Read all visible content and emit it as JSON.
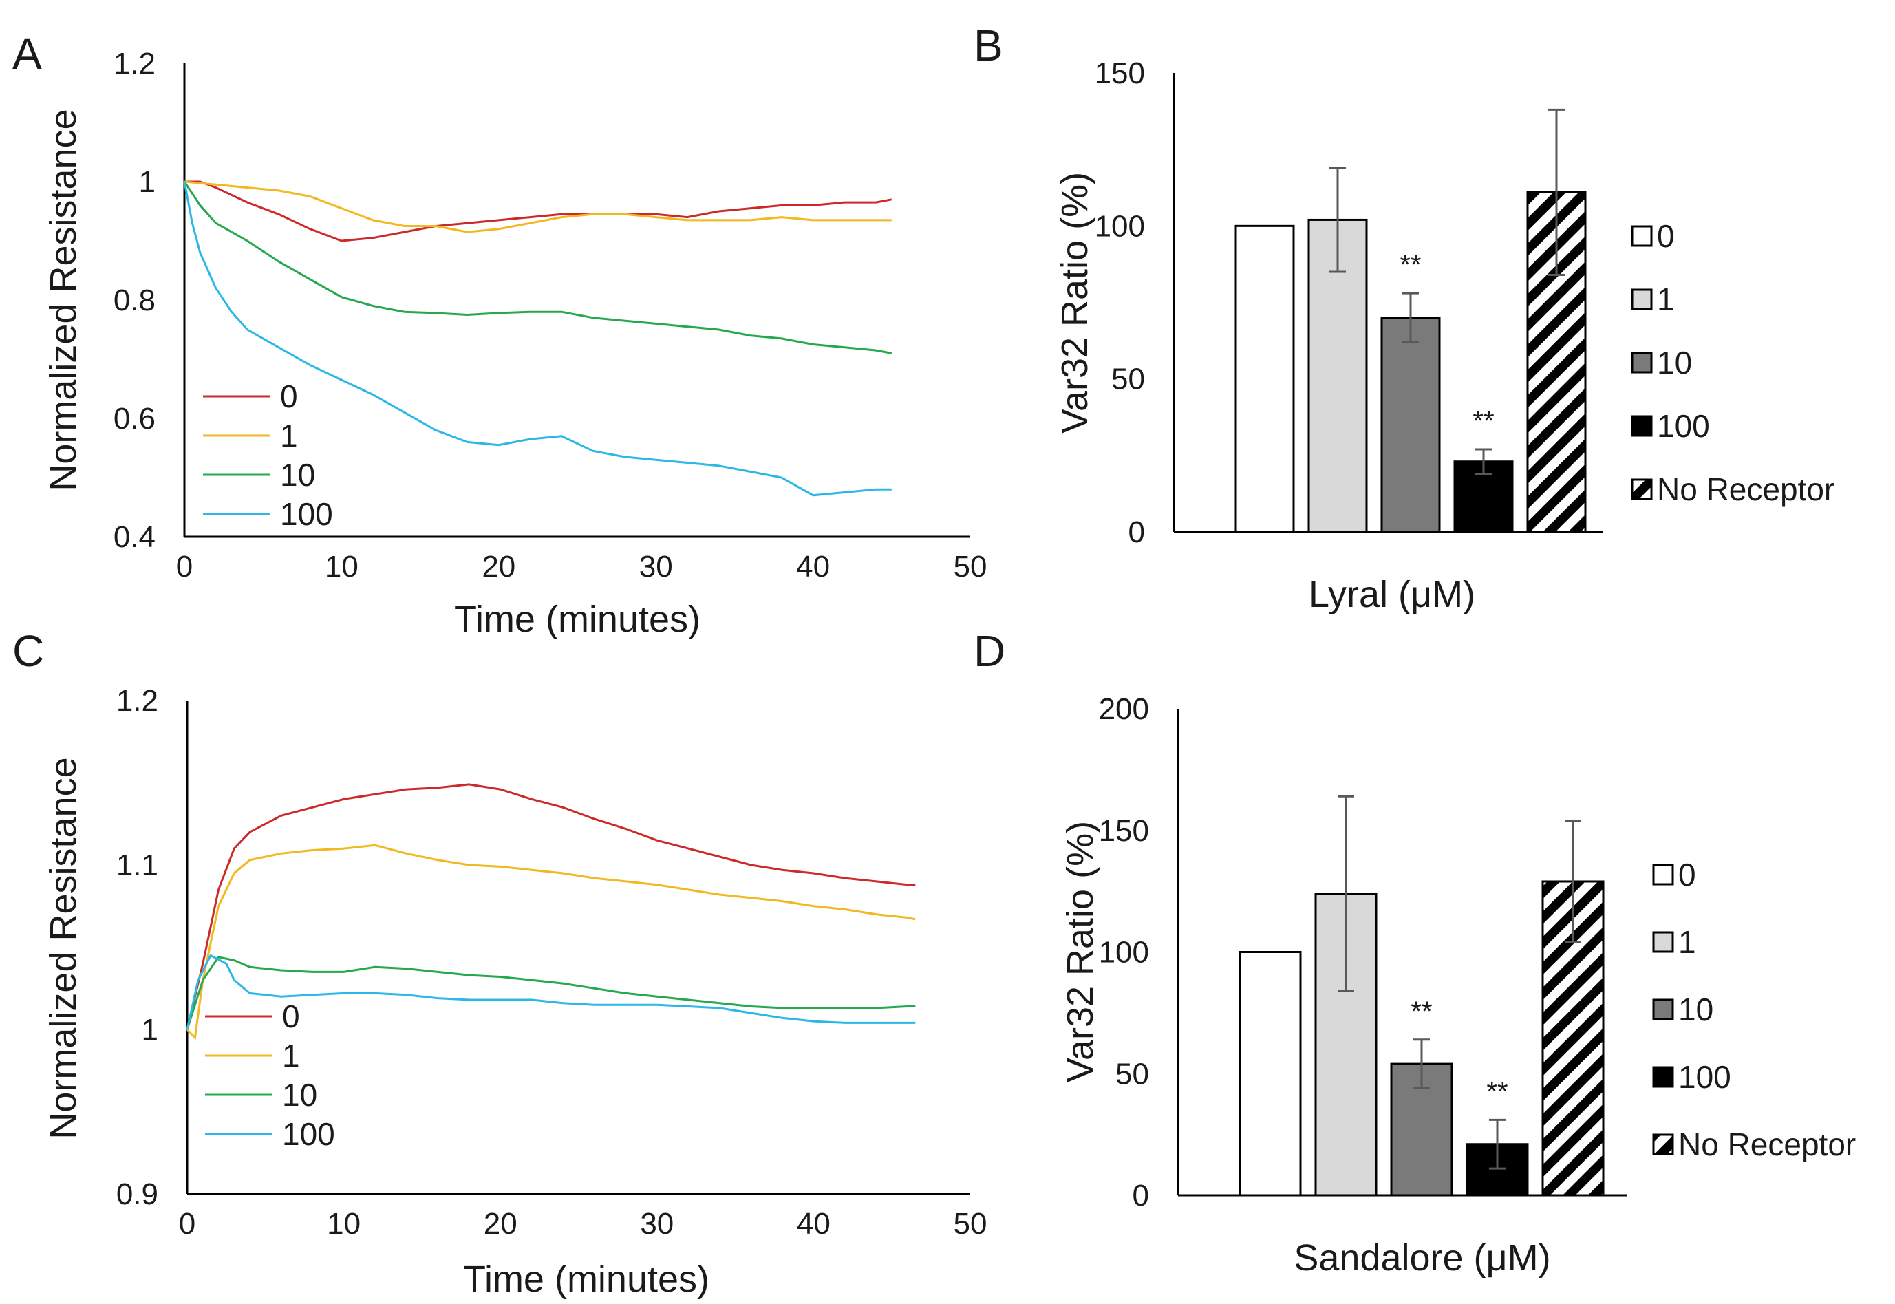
{
  "colors": {
    "c0": "#cc2a2a",
    "c1": "#f2b81f",
    "c10": "#26a84e",
    "c100": "#2bb8e6",
    "bar0": "#ffffff",
    "bar1": "#d9d9d9",
    "bar10": "#7a7a7a",
    "bar100": "#000000",
    "error": "#595959"
  },
  "chart_data": [
    {
      "panel": "A",
      "type": "line",
      "xlabel": "Time (minutes)",
      "ylabel": "Normalized Resistance",
      "xlim": [
        0,
        50
      ],
      "ylim": [
        0.4,
        1.2
      ],
      "xticks": [
        "0",
        "10",
        "20",
        "30",
        "40",
        "50"
      ],
      "yticks": [
        "0.4",
        "0.6",
        "0.8",
        "1",
        "1.2"
      ],
      "legend_position": "bottom-left",
      "series": [
        {
          "name": "0",
          "color": "#cc2a2a",
          "points": [
            [
              0,
              1.0
            ],
            [
              1,
              1.0
            ],
            [
              2,
              0.99
            ],
            [
              4,
              0.965
            ],
            [
              6,
              0.945
            ],
            [
              8,
              0.92
            ],
            [
              10,
              0.9
            ],
            [
              12,
              0.905
            ],
            [
              14,
              0.915
            ],
            [
              16,
              0.925
            ],
            [
              18,
              0.93
            ],
            [
              20,
              0.935
            ],
            [
              22,
              0.94
            ],
            [
              24,
              0.945
            ],
            [
              26,
              0.945
            ],
            [
              28,
              0.945
            ],
            [
              30,
              0.945
            ],
            [
              32,
              0.94
            ],
            [
              34,
              0.95
            ],
            [
              36,
              0.955
            ],
            [
              38,
              0.96
            ],
            [
              40,
              0.96
            ],
            [
              42,
              0.965
            ],
            [
              44,
              0.965
            ],
            [
              45,
              0.97
            ]
          ]
        },
        {
          "name": "1",
          "color": "#f2b81f",
          "points": [
            [
              0,
              1.0
            ],
            [
              2,
              0.995
            ],
            [
              4,
              0.99
            ],
            [
              6,
              0.985
            ],
            [
              8,
              0.975
            ],
            [
              10,
              0.955
            ],
            [
              12,
              0.935
            ],
            [
              14,
              0.925
            ],
            [
              16,
              0.925
            ],
            [
              18,
              0.915
            ],
            [
              20,
              0.92
            ],
            [
              22,
              0.93
            ],
            [
              24,
              0.94
            ],
            [
              26,
              0.945
            ],
            [
              28,
              0.945
            ],
            [
              30,
              0.94
            ],
            [
              32,
              0.935
            ],
            [
              34,
              0.935
            ],
            [
              36,
              0.935
            ],
            [
              38,
              0.94
            ],
            [
              40,
              0.935
            ],
            [
              42,
              0.935
            ],
            [
              44,
              0.935
            ],
            [
              45,
              0.935
            ]
          ]
        },
        {
          "name": "10",
          "color": "#26a84e",
          "points": [
            [
              0,
              1.0
            ],
            [
              1,
              0.96
            ],
            [
              2,
              0.93
            ],
            [
              4,
              0.9
            ],
            [
              6,
              0.865
            ],
            [
              8,
              0.835
            ],
            [
              10,
              0.805
            ],
            [
              12,
              0.79
            ],
            [
              14,
              0.78
            ],
            [
              16,
              0.778
            ],
            [
              18,
              0.775
            ],
            [
              20,
              0.778
            ],
            [
              22,
              0.78
            ],
            [
              24,
              0.78
            ],
            [
              26,
              0.77
            ],
            [
              28,
              0.765
            ],
            [
              30,
              0.76
            ],
            [
              32,
              0.755
            ],
            [
              34,
              0.75
            ],
            [
              36,
              0.74
            ],
            [
              38,
              0.735
            ],
            [
              40,
              0.725
            ],
            [
              42,
              0.72
            ],
            [
              44,
              0.715
            ],
            [
              45,
              0.71
            ]
          ]
        },
        {
          "name": "100",
          "color": "#2bb8e6",
          "points": [
            [
              0,
              1.0
            ],
            [
              0.5,
              0.93
            ],
            [
              1,
              0.88
            ],
            [
              2,
              0.82
            ],
            [
              3,
              0.78
            ],
            [
              4,
              0.75
            ],
            [
              6,
              0.72
            ],
            [
              8,
              0.69
            ],
            [
              10,
              0.665
            ],
            [
              12,
              0.64
            ],
            [
              14,
              0.61
            ],
            [
              16,
              0.58
            ],
            [
              18,
              0.56
            ],
            [
              20,
              0.555
            ],
            [
              22,
              0.565
            ],
            [
              24,
              0.57
            ],
            [
              26,
              0.545
            ],
            [
              28,
              0.535
            ],
            [
              30,
              0.53
            ],
            [
              32,
              0.525
            ],
            [
              34,
              0.52
            ],
            [
              36,
              0.51
            ],
            [
              38,
              0.5
            ],
            [
              40,
              0.47
            ],
            [
              42,
              0.475
            ],
            [
              44,
              0.48
            ],
            [
              45,
              0.48
            ]
          ]
        }
      ]
    },
    {
      "panel": "B",
      "type": "bar",
      "xlabel": "Lyral (μM)",
      "ylabel": "Var32 Ratio (%)",
      "ylim": [
        0,
        150
      ],
      "yticks": [
        "0",
        "50",
        "100",
        "150"
      ],
      "legend_position": "right",
      "categories": [
        "0",
        "1",
        "10",
        "100",
        "No Receptor"
      ],
      "values": [
        100,
        102,
        70,
        23,
        111
      ],
      "errors": [
        0,
        17,
        8,
        4,
        27
      ],
      "significance": [
        "",
        "",
        "**",
        "**",
        ""
      ]
    },
    {
      "panel": "C",
      "type": "line",
      "xlabel": "Time (minutes)",
      "ylabel": "Normalized Resistance",
      "xlim": [
        0,
        50
      ],
      "ylim": [
        0.9,
        1.2
      ],
      "xticks": [
        "0",
        "10",
        "20",
        "30",
        "40",
        "50"
      ],
      "yticks": [
        "0.9",
        "1",
        "1.1",
        "1.2"
      ],
      "legend_position": "bottom-left",
      "series": [
        {
          "name": "0",
          "color": "#cc2a2a",
          "points": [
            [
              0,
              1.0
            ],
            [
              1,
              1.04
            ],
            [
              2,
              1.085
            ],
            [
              3,
              1.11
            ],
            [
              4,
              1.12
            ],
            [
              6,
              1.13
            ],
            [
              8,
              1.135
            ],
            [
              10,
              1.14
            ],
            [
              12,
              1.143
            ],
            [
              14,
              1.146
            ],
            [
              16,
              1.147
            ],
            [
              18,
              1.149
            ],
            [
              20,
              1.146
            ],
            [
              22,
              1.14
            ],
            [
              24,
              1.135
            ],
            [
              26,
              1.128
            ],
            [
              28,
              1.122
            ],
            [
              30,
              1.115
            ],
            [
              32,
              1.11
            ],
            [
              34,
              1.105
            ],
            [
              36,
              1.1
            ],
            [
              38,
              1.097
            ],
            [
              40,
              1.095
            ],
            [
              42,
              1.092
            ],
            [
              44,
              1.09
            ],
            [
              46,
              1.088
            ],
            [
              46.5,
              1.088
            ]
          ]
        },
        {
          "name": "1",
          "color": "#f2b81f",
          "points": [
            [
              0,
              1.0
            ],
            [
              0.5,
              0.995
            ],
            [
              1,
              1.03
            ],
            [
              2,
              1.075
            ],
            [
              3,
              1.095
            ],
            [
              4,
              1.103
            ],
            [
              6,
              1.107
            ],
            [
              8,
              1.109
            ],
            [
              10,
              1.11
            ],
            [
              12,
              1.112
            ],
            [
              14,
              1.107
            ],
            [
              16,
              1.103
            ],
            [
              18,
              1.1
            ],
            [
              20,
              1.099
            ],
            [
              22,
              1.097
            ],
            [
              24,
              1.095
            ],
            [
              26,
              1.092
            ],
            [
              28,
              1.09
            ],
            [
              30,
              1.088
            ],
            [
              32,
              1.085
            ],
            [
              34,
              1.082
            ],
            [
              36,
              1.08
            ],
            [
              38,
              1.078
            ],
            [
              40,
              1.075
            ],
            [
              42,
              1.073
            ],
            [
              44,
              1.07
            ],
            [
              46,
              1.068
            ],
            [
              46.5,
              1.067
            ]
          ]
        },
        {
          "name": "10",
          "color": "#26a84e",
          "points": [
            [
              0,
              1.0
            ],
            [
              1,
              1.03
            ],
            [
              2,
              1.044
            ],
            [
              3,
              1.042
            ],
            [
              4,
              1.038
            ],
            [
              6,
              1.036
            ],
            [
              8,
              1.035
            ],
            [
              10,
              1.035
            ],
            [
              12,
              1.038
            ],
            [
              14,
              1.037
            ],
            [
              16,
              1.035
            ],
            [
              18,
              1.033
            ],
            [
              20,
              1.032
            ],
            [
              22,
              1.03
            ],
            [
              24,
              1.028
            ],
            [
              26,
              1.025
            ],
            [
              28,
              1.022
            ],
            [
              30,
              1.02
            ],
            [
              32,
              1.018
            ],
            [
              34,
              1.016
            ],
            [
              36,
              1.014
            ],
            [
              38,
              1.013
            ],
            [
              40,
              1.013
            ],
            [
              42,
              1.013
            ],
            [
              44,
              1.013
            ],
            [
              46,
              1.014
            ],
            [
              46.5,
              1.014
            ]
          ]
        },
        {
          "name": "100",
          "color": "#2bb8e6",
          "points": [
            [
              0,
              1.0
            ],
            [
              0.7,
              1.03
            ],
            [
              1.5,
              1.045
            ],
            [
              2.5,
              1.04
            ],
            [
              3,
              1.03
            ],
            [
              4,
              1.022
            ],
            [
              6,
              1.02
            ],
            [
              8,
              1.021
            ],
            [
              10,
              1.022
            ],
            [
              12,
              1.022
            ],
            [
              14,
              1.021
            ],
            [
              16,
              1.019
            ],
            [
              18,
              1.018
            ],
            [
              20,
              1.018
            ],
            [
              22,
              1.018
            ],
            [
              24,
              1.016
            ],
            [
              26,
              1.015
            ],
            [
              28,
              1.015
            ],
            [
              30,
              1.015
            ],
            [
              32,
              1.014
            ],
            [
              34,
              1.013
            ],
            [
              36,
              1.01
            ],
            [
              38,
              1.007
            ],
            [
              40,
              1.005
            ],
            [
              42,
              1.004
            ],
            [
              44,
              1.004
            ],
            [
              46,
              1.004
            ],
            [
              46.5,
              1.004
            ]
          ]
        }
      ]
    },
    {
      "panel": "D",
      "type": "bar",
      "xlabel": "Sandalore (μM)",
      "ylabel": "Var32 Ratio (%)",
      "ylim": [
        0,
        200
      ],
      "yticks": [
        "0",
        "50",
        "100",
        "150",
        "200"
      ],
      "legend_position": "right",
      "categories": [
        "0",
        "1",
        "10",
        "100",
        "No Receptor"
      ],
      "values": [
        100,
        124,
        54,
        21,
        129
      ],
      "errors": [
        0,
        40,
        10,
        10,
        25
      ],
      "significance": [
        "",
        "",
        "**",
        "**",
        ""
      ]
    }
  ]
}
